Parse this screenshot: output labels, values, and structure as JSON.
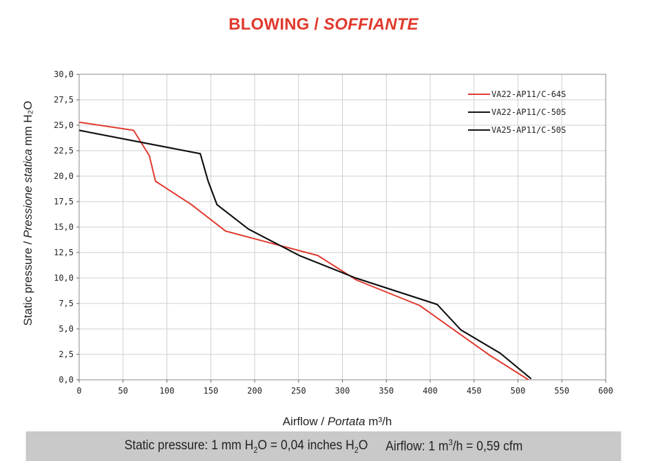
{
  "title": {
    "main": "BLOWING /",
    "italic": "SOFFIANTE"
  },
  "footer": {
    "pressure_prefix": "Static pressure: 1 mm H",
    "pressure_sub": "2",
    "pressure_mid": "O = 0,04 inches H",
    "pressure_sub2": "2",
    "pressure_end": "O",
    "airflow_prefix": "Airflow: 1 m",
    "airflow_sup": "3",
    "airflow_end": "/h = 0,59 cfm"
  },
  "colors": {
    "red": "#e03a2e",
    "black": "#111111",
    "grid": "#cfcfcf",
    "footer_bg": "#c9c9c9"
  },
  "chart_data": {
    "type": "line",
    "title": "BLOWING / SOFFIANTE",
    "xlabel": "Airflow / Portata m³/h",
    "ylabel": "Static pressure / Pressione statica mm H₂O",
    "xlabel_parts": {
      "normal": "Airflow",
      "italic": "Portata",
      "unit": "m³/h"
    },
    "ylabel_parts": {
      "normal": "Static pressure",
      "italic": "Pressione statica",
      "unit": "mm H₂O"
    },
    "xlim": [
      0,
      600
    ],
    "ylim": [
      0,
      30
    ],
    "x_ticks": [
      0,
      50,
      100,
      150,
      200,
      250,
      300,
      350,
      400,
      450,
      500,
      550,
      600
    ],
    "x_tick_labels": [
      "0",
      "50",
      "100",
      "150",
      "200",
      "250",
      "300",
      "350",
      "400",
      "450",
      "500",
      "550",
      "600"
    ],
    "y_ticks": [
      0,
      2.5,
      5,
      7.5,
      10,
      12.5,
      15,
      17.5,
      20,
      22.5,
      25,
      27.5,
      30
    ],
    "y_tick_labels": [
      "0,0",
      "2,5",
      "5,0",
      "7,5",
      "10,0",
      "12,5",
      "15,0",
      "17,5",
      "20,0",
      "22,5",
      "25,0",
      "27,5",
      "30,0"
    ],
    "grid": true,
    "legend_position": "top-right",
    "series": [
      {
        "name": "VA22-AP11/C-64S",
        "color": "#e03a2e",
        "points": [
          [
            0,
            25.3
          ],
          [
            62,
            24.5
          ],
          [
            80,
            22.0
          ],
          [
            87,
            19.5
          ],
          [
            128,
            17.2
          ],
          [
            167,
            14.6
          ],
          [
            272,
            12.2
          ],
          [
            316,
            9.8
          ],
          [
            388,
            7.3
          ],
          [
            468,
            2.4
          ],
          [
            512,
            0.0
          ]
        ]
      },
      {
        "name": "VA22-AP11/C-50S",
        "color": "#111111",
        "points": [
          [
            0,
            24.5
          ],
          [
            138,
            22.2
          ],
          [
            147,
            19.5
          ],
          [
            157,
            17.2
          ],
          [
            193,
            14.8
          ],
          [
            251,
            12.2
          ],
          [
            315,
            10.0
          ],
          [
            408,
            7.4
          ],
          [
            435,
            4.9
          ],
          [
            480,
            2.6
          ],
          [
            515,
            0.1
          ]
        ]
      },
      {
        "name": "VA25-AP11/C-50S",
        "color": "#111111",
        "points": [
          [
            0,
            24.5
          ],
          [
            138,
            22.2
          ],
          [
            147,
            19.5
          ],
          [
            157,
            17.2
          ],
          [
            193,
            14.8
          ],
          [
            251,
            12.2
          ],
          [
            315,
            10.0
          ],
          [
            408,
            7.4
          ],
          [
            435,
            4.9
          ],
          [
            480,
            2.6
          ],
          [
            515,
            0.1
          ]
        ]
      }
    ]
  }
}
